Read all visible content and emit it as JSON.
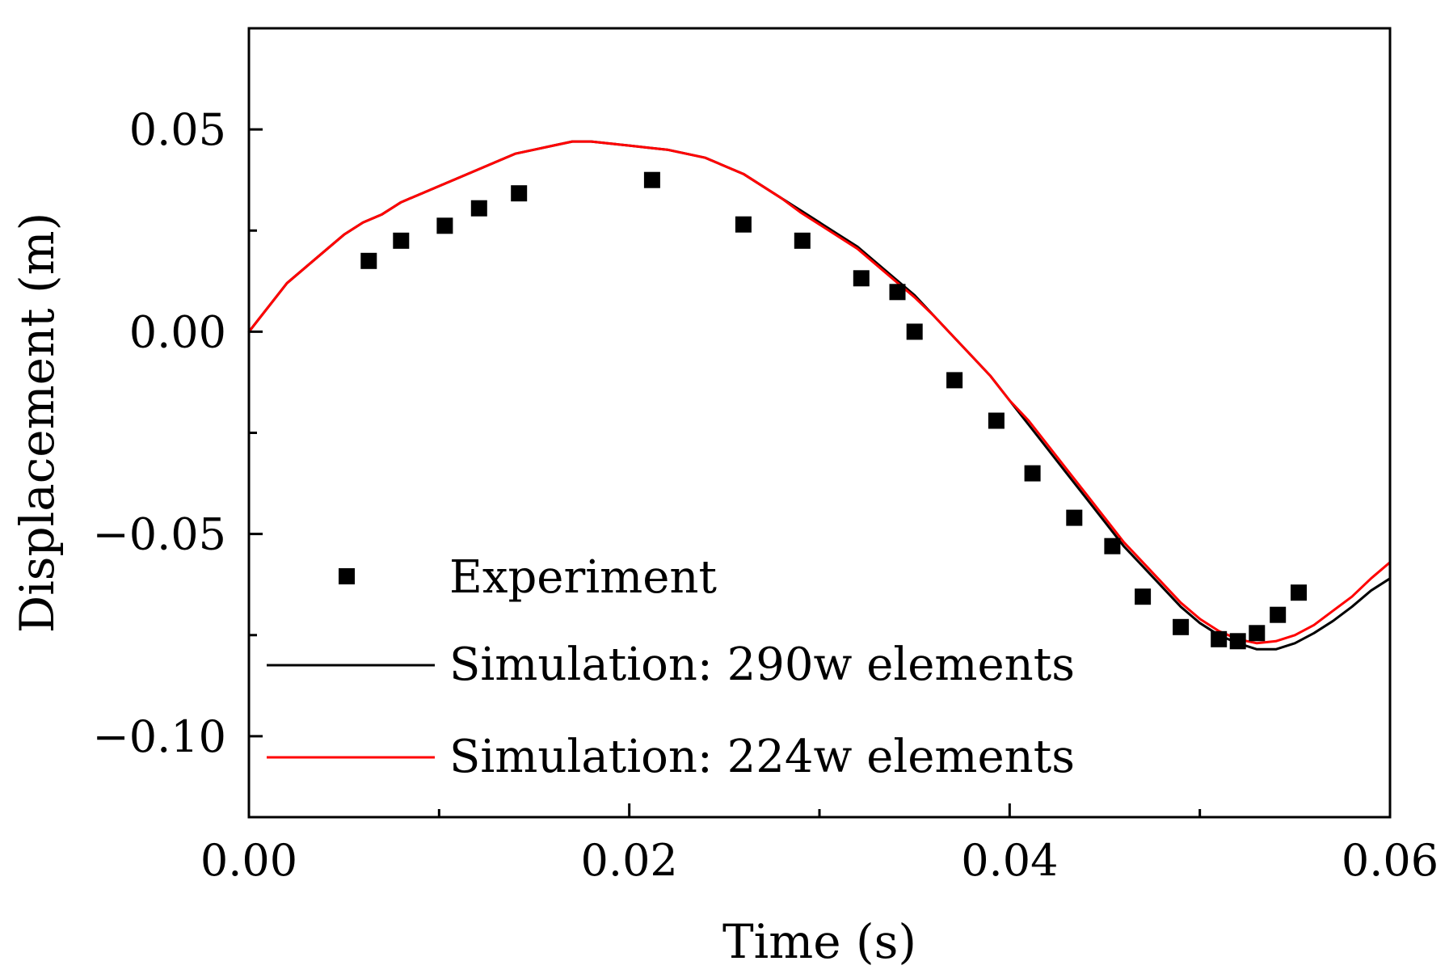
{
  "chart_data": {
    "type": "line",
    "xlabel": "Time (s)",
    "ylabel": "Displacement (m)",
    "xlim": [
      0,
      0.06
    ],
    "ylim": [
      -0.12,
      0.075
    ],
    "x_ticks": [
      0,
      0.02,
      0.04,
      0.06
    ],
    "x_tick_labels": [
      "0.00",
      "0.02",
      "0.04",
      "0.06"
    ],
    "x_minor_ticks": [
      0.01,
      0.03,
      0.05
    ],
    "y_ticks": [
      0.05,
      0,
      -0.05,
      -0.1
    ],
    "y_tick_labels": [
      "0.05",
      "0.00",
      "−0.05",
      "−0.10"
    ],
    "y_minor_ticks": [
      0.025,
      -0.025,
      -0.075
    ],
    "legend_position": "bottom-left",
    "series": [
      {
        "name": "Experiment",
        "kind": "scatter",
        "marker": "square",
        "color": "#000000",
        "points": [
          [
            0.0063,
            0.0175
          ],
          [
            0.008,
            0.0225
          ],
          [
            0.0103,
            0.0262
          ],
          [
            0.0121,
            0.0305
          ],
          [
            0.0142,
            0.0342
          ],
          [
            0.0212,
            0.0375
          ],
          [
            0.026,
            0.0265
          ],
          [
            0.0291,
            0.0225
          ],
          [
            0.0322,
            0.0132
          ],
          [
            0.0341,
            0.0098
          ],
          [
            0.035,
            0.0
          ],
          [
            0.0371,
            -0.012
          ],
          [
            0.0393,
            -0.022
          ],
          [
            0.0412,
            -0.035
          ],
          [
            0.0434,
            -0.046
          ],
          [
            0.0454,
            -0.053
          ],
          [
            0.047,
            -0.0655
          ],
          [
            0.049,
            -0.073
          ],
          [
            0.051,
            -0.076
          ],
          [
            0.052,
            -0.0765
          ],
          [
            0.053,
            -0.0745
          ],
          [
            0.0541,
            -0.07
          ],
          [
            0.0552,
            -0.0645
          ]
        ]
      },
      {
        "name": "Simulation: 290w elements",
        "kind": "line",
        "color": "#000000",
        "points": [
          [
            0.0,
            0.0
          ],
          [
            0.001,
            0.006
          ],
          [
            0.002,
            0.012
          ],
          [
            0.003,
            0.016
          ],
          [
            0.004,
            0.02
          ],
          [
            0.005,
            0.024
          ],
          [
            0.006,
            0.027
          ],
          [
            0.007,
            0.029
          ],
          [
            0.008,
            0.032
          ],
          [
            0.009,
            0.034
          ],
          [
            0.01,
            0.036
          ],
          [
            0.011,
            0.038
          ],
          [
            0.012,
            0.04
          ],
          [
            0.013,
            0.042
          ],
          [
            0.014,
            0.044
          ],
          [
            0.015,
            0.045
          ],
          [
            0.016,
            0.046
          ],
          [
            0.017,
            0.047
          ],
          [
            0.018,
            0.047
          ],
          [
            0.019,
            0.0465
          ],
          [
            0.02,
            0.046
          ],
          [
            0.021,
            0.0455
          ],
          [
            0.022,
            0.045
          ],
          [
            0.023,
            0.044
          ],
          [
            0.024,
            0.043
          ],
          [
            0.025,
            0.041
          ],
          [
            0.026,
            0.039
          ],
          [
            0.027,
            0.036
          ],
          [
            0.028,
            0.033
          ],
          [
            0.029,
            0.03
          ],
          [
            0.03,
            0.027
          ],
          [
            0.031,
            0.024
          ],
          [
            0.032,
            0.021
          ],
          [
            0.033,
            0.017
          ],
          [
            0.034,
            0.013
          ],
          [
            0.035,
            0.009
          ],
          [
            0.036,
            0.004
          ],
          [
            0.037,
            -0.001
          ],
          [
            0.038,
            -0.006
          ],
          [
            0.039,
            -0.011
          ],
          [
            0.04,
            -0.017
          ],
          [
            0.041,
            -0.023
          ],
          [
            0.042,
            -0.029
          ],
          [
            0.043,
            -0.035
          ],
          [
            0.044,
            -0.041
          ],
          [
            0.045,
            -0.047
          ],
          [
            0.046,
            -0.053
          ],
          [
            0.047,
            -0.058
          ],
          [
            0.048,
            -0.063
          ],
          [
            0.049,
            -0.068
          ],
          [
            0.05,
            -0.072
          ],
          [
            0.051,
            -0.075
          ],
          [
            0.052,
            -0.077
          ],
          [
            0.053,
            -0.0785
          ],
          [
            0.054,
            -0.0785
          ],
          [
            0.055,
            -0.077
          ],
          [
            0.056,
            -0.0745
          ],
          [
            0.057,
            -0.0715
          ],
          [
            0.058,
            -0.068
          ],
          [
            0.059,
            -0.064
          ],
          [
            0.06,
            -0.061
          ]
        ]
      },
      {
        "name": "Simulation: 224w elements",
        "kind": "line",
        "color": "#ff0000",
        "points": [
          [
            0.0,
            0.0
          ],
          [
            0.001,
            0.006
          ],
          [
            0.002,
            0.012
          ],
          [
            0.003,
            0.016
          ],
          [
            0.004,
            0.02
          ],
          [
            0.005,
            0.024
          ],
          [
            0.006,
            0.027
          ],
          [
            0.007,
            0.029
          ],
          [
            0.008,
            0.032
          ],
          [
            0.009,
            0.034
          ],
          [
            0.01,
            0.036
          ],
          [
            0.011,
            0.038
          ],
          [
            0.012,
            0.04
          ],
          [
            0.013,
            0.042
          ],
          [
            0.014,
            0.044
          ],
          [
            0.015,
            0.045
          ],
          [
            0.016,
            0.046
          ],
          [
            0.017,
            0.047
          ],
          [
            0.018,
            0.047
          ],
          [
            0.019,
            0.0465
          ],
          [
            0.02,
            0.046
          ],
          [
            0.021,
            0.0455
          ],
          [
            0.022,
            0.045
          ],
          [
            0.023,
            0.044
          ],
          [
            0.024,
            0.043
          ],
          [
            0.025,
            0.041
          ],
          [
            0.026,
            0.039
          ],
          [
            0.027,
            0.036
          ],
          [
            0.028,
            0.033
          ],
          [
            0.029,
            0.0295
          ],
          [
            0.03,
            0.0265
          ],
          [
            0.031,
            0.0235
          ],
          [
            0.032,
            0.0205
          ],
          [
            0.033,
            0.0165
          ],
          [
            0.034,
            0.0125
          ],
          [
            0.035,
            0.0085
          ],
          [
            0.036,
            0.004
          ],
          [
            0.037,
            -0.001
          ],
          [
            0.038,
            -0.006
          ],
          [
            0.039,
            -0.011
          ],
          [
            0.04,
            -0.017
          ],
          [
            0.041,
            -0.022
          ],
          [
            0.042,
            -0.028
          ],
          [
            0.043,
            -0.034
          ],
          [
            0.044,
            -0.04
          ],
          [
            0.045,
            -0.046
          ],
          [
            0.046,
            -0.052
          ],
          [
            0.047,
            -0.057
          ],
          [
            0.048,
            -0.062
          ],
          [
            0.049,
            -0.067
          ],
          [
            0.05,
            -0.071
          ],
          [
            0.051,
            -0.074
          ],
          [
            0.052,
            -0.076
          ],
          [
            0.053,
            -0.077
          ],
          [
            0.054,
            -0.0765
          ],
          [
            0.055,
            -0.075
          ],
          [
            0.056,
            -0.0725
          ],
          [
            0.057,
            -0.069
          ],
          [
            0.058,
            -0.0655
          ],
          [
            0.059,
            -0.061
          ],
          [
            0.06,
            -0.057
          ]
        ]
      }
    ]
  }
}
